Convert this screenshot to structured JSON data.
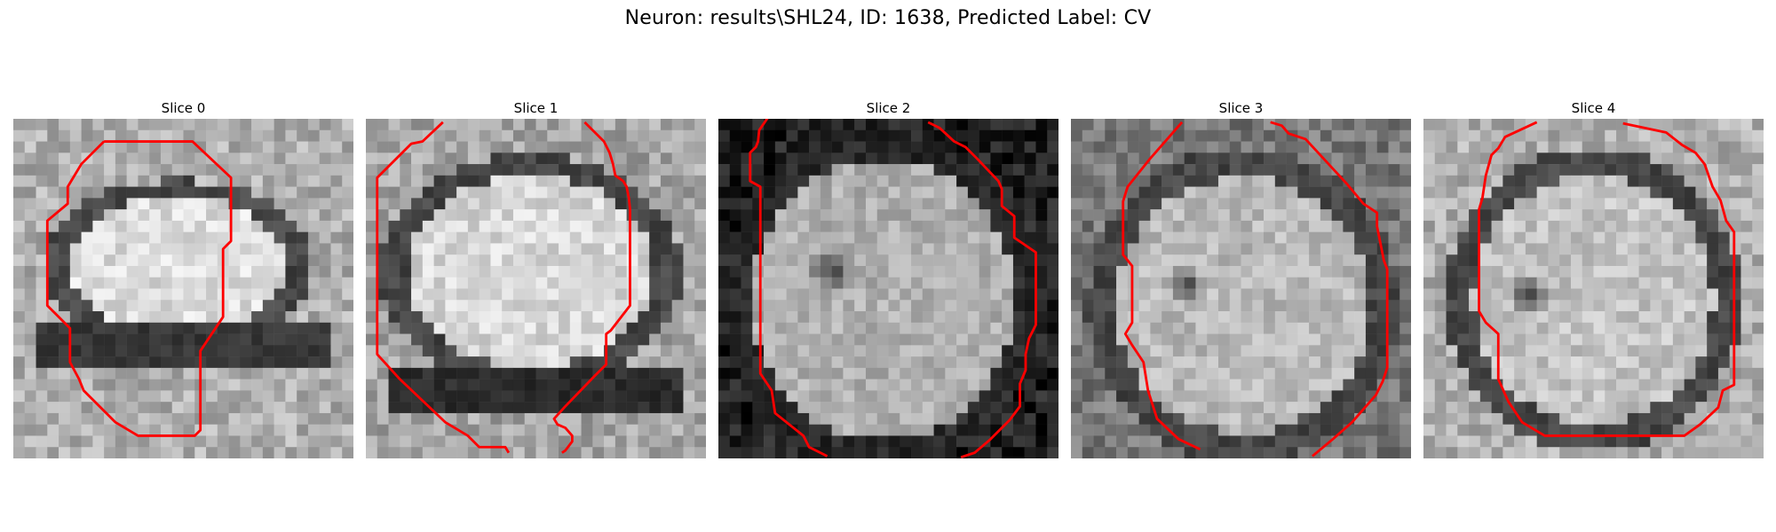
{
  "figure": {
    "title": "Neuron: results\\SHL24, ID: 1638, Predicted Label: CV"
  },
  "panels": [
    {
      "label": "Slice 0"
    },
    {
      "label": "Slice 1"
    },
    {
      "label": "Slice 2"
    },
    {
      "label": "Slice 3"
    },
    {
      "label": "Slice 4"
    }
  ],
  "colors": {
    "contour": "#ff0000"
  }
}
